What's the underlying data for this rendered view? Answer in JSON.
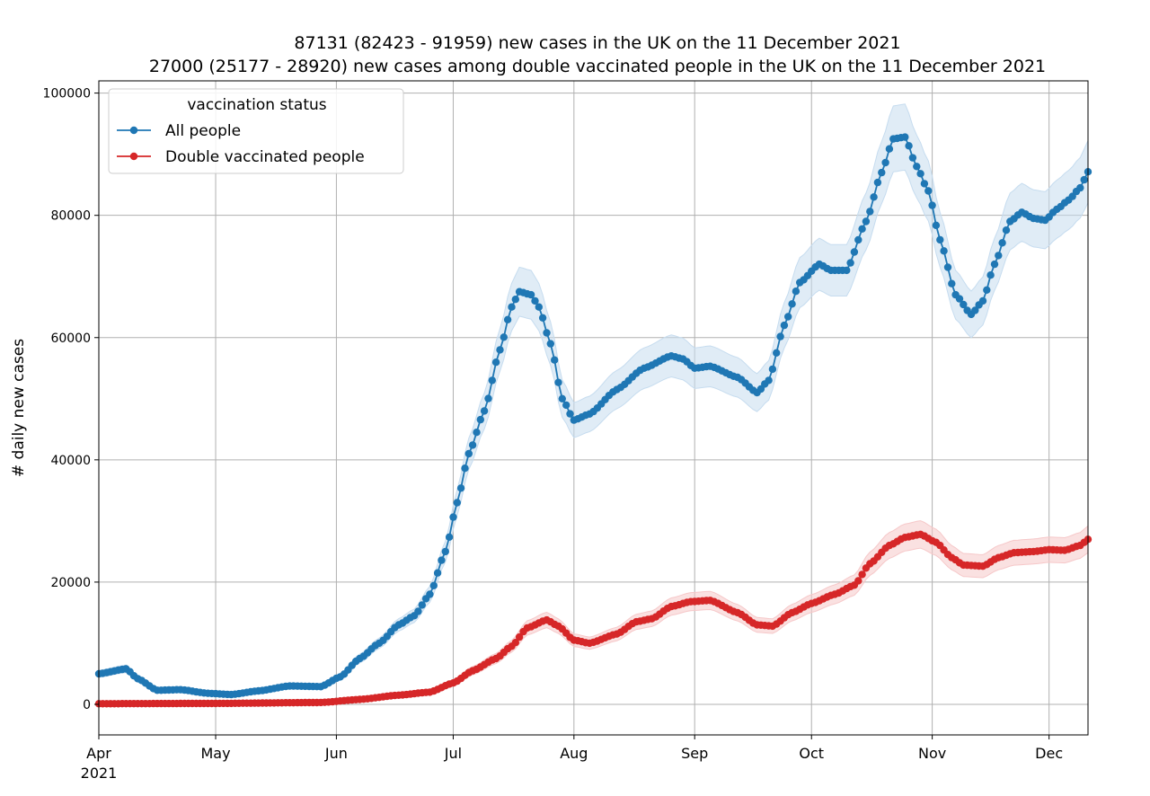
{
  "chart_data": {
    "type": "line",
    "title": [
      "87131 (82423 - 91959) new cases in the UK on the 11 December 2021",
      "27000 (25177 - 28920) new cases among double vaccinated people in the UK on the 11 December 2021"
    ],
    "xlabel": "",
    "ylabel": "# daily new cases",
    "x_range": [
      "2021-04-01",
      "2021-12-11"
    ],
    "ylim": [
      -5000,
      102000
    ],
    "y_ticks": [
      "0",
      "20000",
      "40000",
      "60000",
      "80000",
      "100000"
    ],
    "x_ticks": [
      {
        "date": "2021-04-01",
        "label": "Apr",
        "sublabel": "2021"
      },
      {
        "date": "2021-05-01",
        "label": "May",
        "sublabel": ""
      },
      {
        "date": "2021-06-01",
        "label": "Jun",
        "sublabel": ""
      },
      {
        "date": "2021-07-01",
        "label": "Jul",
        "sublabel": ""
      },
      {
        "date": "2021-08-01",
        "label": "Aug",
        "sublabel": ""
      },
      {
        "date": "2021-09-01",
        "label": "Sep",
        "sublabel": ""
      },
      {
        "date": "2021-10-01",
        "label": "Oct",
        "sublabel": ""
      },
      {
        "date": "2021-11-01",
        "label": "Nov",
        "sublabel": ""
      },
      {
        "date": "2021-12-01",
        "label": "Dec",
        "sublabel": ""
      }
    ],
    "grid": true,
    "legend": {
      "title": "vaccination status",
      "position": "top-left"
    },
    "uncertainty_band": "±5% (shaded)",
    "series": [
      {
        "name": "All people",
        "color": "#1f77b4",
        "band_color": "#c6dcef",
        "points": [
          [
            "2021-04-01",
            5000
          ],
          [
            "2021-04-08",
            5800
          ],
          [
            "2021-04-11",
            4200
          ],
          [
            "2021-04-16",
            2300
          ],
          [
            "2021-04-22",
            2400
          ],
          [
            "2021-04-29",
            1800
          ],
          [
            "2021-05-05",
            1600
          ],
          [
            "2021-05-12",
            2200
          ],
          [
            "2021-05-20",
            3000
          ],
          [
            "2021-05-28",
            2900
          ],
          [
            "2021-06-02",
            4500
          ],
          [
            "2021-06-07",
            7500
          ],
          [
            "2021-06-12",
            10000
          ],
          [
            "2021-06-17",
            13000
          ],
          [
            "2021-06-21",
            14500
          ],
          [
            "2021-06-25",
            18000
          ],
          [
            "2021-06-29",
            25000
          ],
          [
            "2021-07-02",
            33000
          ],
          [
            "2021-07-05",
            41000
          ],
          [
            "2021-07-09",
            48000
          ],
          [
            "2021-07-13",
            58000
          ],
          [
            "2021-07-16",
            65000
          ],
          [
            "2021-07-18",
            67500
          ],
          [
            "2021-07-21",
            67000
          ],
          [
            "2021-07-23",
            65000
          ],
          [
            "2021-07-26",
            59000
          ],
          [
            "2021-07-29",
            50000
          ],
          [
            "2021-08-01",
            46500
          ],
          [
            "2021-08-05",
            47500
          ],
          [
            "2021-08-12",
            51500
          ],
          [
            "2021-08-19",
            55000
          ],
          [
            "2021-08-26",
            57000
          ],
          [
            "2021-08-29",
            56500
          ],
          [
            "2021-09-01",
            55000
          ],
          [
            "2021-09-05",
            55300
          ],
          [
            "2021-09-12",
            53500
          ],
          [
            "2021-09-17",
            51000
          ],
          [
            "2021-09-20",
            53000
          ],
          [
            "2021-09-24",
            62000
          ],
          [
            "2021-09-28",
            69000
          ],
          [
            "2021-10-03",
            72000
          ],
          [
            "2021-10-06",
            71000
          ],
          [
            "2021-10-10",
            71000
          ],
          [
            "2021-10-15",
            79000
          ],
          [
            "2021-10-19",
            87000
          ],
          [
            "2021-10-22",
            92500
          ],
          [
            "2021-10-25",
            92800
          ],
          [
            "2021-10-28",
            88000
          ],
          [
            "2021-10-31",
            84000
          ],
          [
            "2021-11-03",
            76000
          ],
          [
            "2021-11-07",
            67000
          ],
          [
            "2021-11-11",
            63800
          ],
          [
            "2021-11-14",
            66000
          ],
          [
            "2021-11-17",
            72000
          ],
          [
            "2021-11-21",
            79000
          ],
          [
            "2021-11-24",
            80500
          ],
          [
            "2021-11-27",
            79500
          ],
          [
            "2021-11-30",
            79200
          ],
          [
            "2021-12-03",
            81000
          ],
          [
            "2021-12-06",
            82500
          ],
          [
            "2021-12-09",
            84500
          ],
          [
            "2021-12-11",
            87131
          ]
        ]
      },
      {
        "name": "Double vaccinated people",
        "color": "#d62728",
        "band_color": "#f6c8c9",
        "points": [
          [
            "2021-04-01",
            100
          ],
          [
            "2021-05-01",
            150
          ],
          [
            "2021-05-28",
            300
          ],
          [
            "2021-06-07",
            800
          ],
          [
            "2021-06-17",
            1500
          ],
          [
            "2021-06-25",
            2000
          ],
          [
            "2021-07-01",
            3500
          ],
          [
            "2021-07-06",
            5500
          ],
          [
            "2021-07-12",
            7500
          ],
          [
            "2021-07-16",
            9500
          ],
          [
            "2021-07-20",
            12500
          ],
          [
            "2021-07-25",
            13800
          ],
          [
            "2021-07-28",
            12800
          ],
          [
            "2021-08-01",
            10500
          ],
          [
            "2021-08-05",
            10000
          ],
          [
            "2021-08-12",
            11500
          ],
          [
            "2021-08-17",
            13500
          ],
          [
            "2021-08-21",
            14000
          ],
          [
            "2021-08-26",
            16000
          ],
          [
            "2021-08-31",
            16800
          ],
          [
            "2021-09-05",
            17000
          ],
          [
            "2021-09-12",
            15000
          ],
          [
            "2021-09-17",
            13000
          ],
          [
            "2021-09-21",
            12800
          ],
          [
            "2021-09-26",
            15000
          ],
          [
            "2021-10-01",
            16500
          ],
          [
            "2021-10-07",
            18000
          ],
          [
            "2021-10-12",
            19500
          ],
          [
            "2021-10-16",
            23000
          ],
          [
            "2021-10-21",
            26000
          ],
          [
            "2021-10-25",
            27300
          ],
          [
            "2021-10-29",
            27800
          ],
          [
            "2021-11-02",
            26500
          ],
          [
            "2021-11-06",
            24000
          ],
          [
            "2021-11-09",
            22800
          ],
          [
            "2021-11-14",
            22600
          ],
          [
            "2021-11-18",
            24000
          ],
          [
            "2021-11-22",
            24800
          ],
          [
            "2021-11-27",
            25000
          ],
          [
            "2021-12-01",
            25300
          ],
          [
            "2021-12-05",
            25200
          ],
          [
            "2021-12-09",
            26000
          ],
          [
            "2021-12-11",
            27000
          ]
        ]
      }
    ]
  }
}
